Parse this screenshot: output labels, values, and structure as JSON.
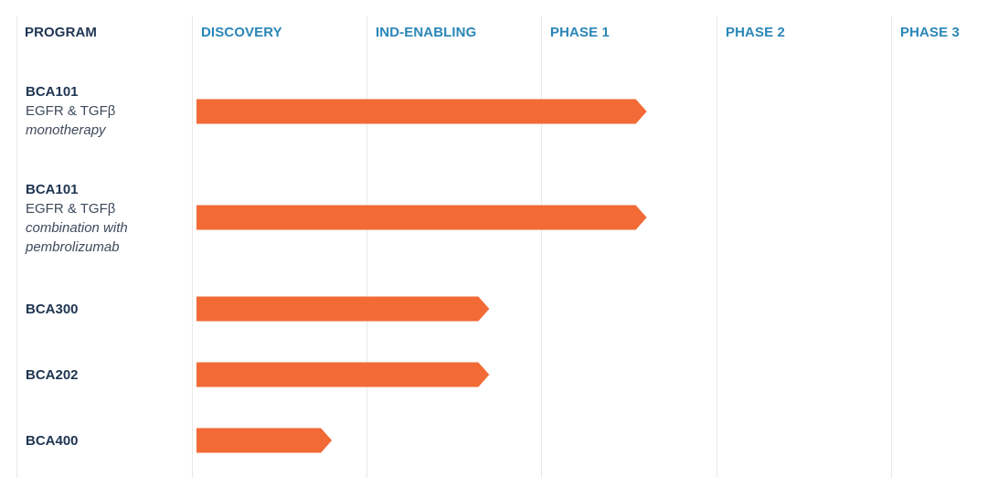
{
  "header": {
    "program_label": "PROGRAM"
  },
  "chart_data": {
    "type": "bar",
    "stages": [
      "DISCOVERY",
      "IND-ENABLING",
      "PHASE 1",
      "PHASE 2",
      "PHASE 3"
    ],
    "programs": [
      {
        "name": "BCA101",
        "target": "EGFR & TGFβ",
        "note": "monotherapy",
        "stage_progress": 2.6
      },
      {
        "name": "BCA101",
        "target": "EGFR & TGFβ",
        "note": "combination with pembrolizumab",
        "stage_progress": 2.6
      },
      {
        "name": "BCA300",
        "target": "",
        "note": "",
        "stage_progress": 1.7
      },
      {
        "name": "BCA202",
        "target": "",
        "note": "",
        "stage_progress": 1.7
      },
      {
        "name": "BCA400",
        "target": "",
        "note": "",
        "stage_progress": 0.8
      }
    ],
    "bar_color": "#f26a35",
    "header_color": "#2a86b8",
    "label_color": "#1f3552"
  }
}
